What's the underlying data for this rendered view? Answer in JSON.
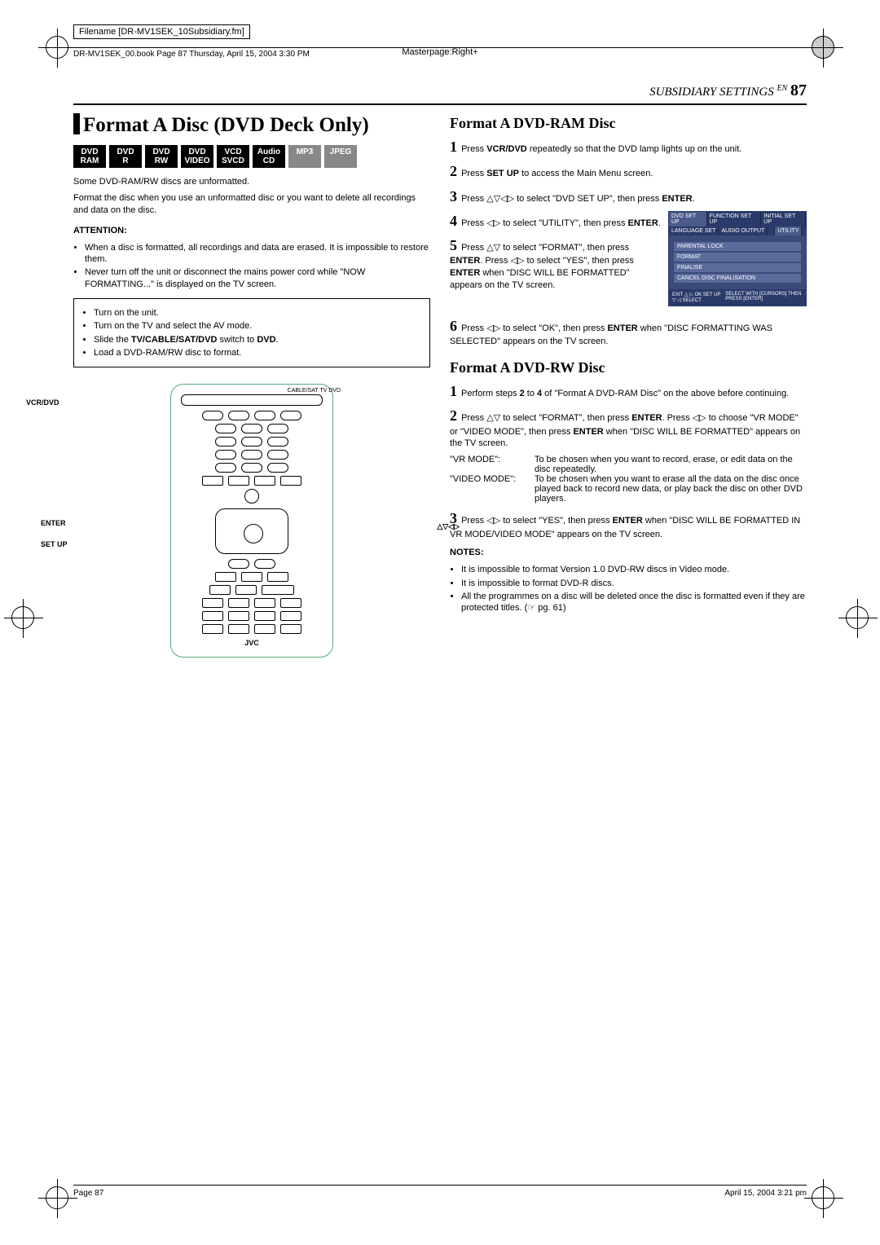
{
  "meta": {
    "filename_label": "Filename [DR-MV1SEK_10Subsidiary.fm]",
    "book_line": "DR-MV1SEK_00.book  Page 87  Thursday, April 15, 2004  3:30 PM",
    "masterpage": "Masterpage:Right+",
    "section": "SUBSIDIARY SETTINGS",
    "lang": "EN",
    "page_num": "87",
    "footer_left": "Page 87",
    "footer_right": "April 15, 2004 3:21 pm"
  },
  "left": {
    "title": "Format A Disc (DVD Deck Only)",
    "badges": [
      {
        "l1": "DVD",
        "l2": "RAM",
        "grey": false
      },
      {
        "l1": "DVD",
        "l2": "R",
        "grey": false
      },
      {
        "l1": "DVD",
        "l2": "RW",
        "grey": false
      },
      {
        "l1": "DVD",
        "l2": "VIDEO",
        "grey": false
      },
      {
        "l1": "VCD",
        "l2": "SVCD",
        "grey": false
      },
      {
        "l1": "Audio",
        "l2": "CD",
        "grey": false
      },
      {
        "l1": "MP3",
        "l2": "",
        "grey": true
      },
      {
        "l1": "JPEG",
        "l2": "",
        "grey": true
      }
    ],
    "intro1": "Some DVD-RAM/RW discs are unformatted.",
    "intro2": "Format the disc when you use an unformatted disc or you want to delete all recordings and data on the disc.",
    "attention_h": "ATTENTION:",
    "attention": [
      "When a disc is formatted, all recordings and data are erased. It is impossible to restore them.",
      "Never turn off the unit or disconnect the mains power cord while \"NOW FORMATTING...\" is displayed on the TV screen."
    ],
    "boxed": [
      "Turn on the unit.",
      "Turn on the TV and select the AV mode.",
      "Slide the TV/CABLE/SAT/DVD switch to DVD.",
      "Load a DVD-RAM/RW disc to format."
    ],
    "box_bold": "TV/CABLE/SAT/DVD",
    "box_bold2": "DVD",
    "remote_labels": {
      "vcr": "VCR/DVD",
      "enter": "ENTER",
      "setup": "SET UP",
      "arrows": "△▽◁▷",
      "cable": "CABLE/SAT   TV       DVD",
      "brand": "JVC"
    }
  },
  "right": {
    "ram_title": "Format A DVD-RAM Disc",
    "ram_steps": {
      "s1a": "Press ",
      "s1b": "VCR/DVD",
      "s1c": " repeatedly so that the DVD lamp lights up on the unit.",
      "s2a": "Press ",
      "s2b": "SET UP",
      "s2c": " to access the Main Menu screen.",
      "s3a": "Press △▽◁▷ to select \"DVD SET UP\", then press ",
      "s3b": "ENTER",
      "s3c": ".",
      "s4a": "Press ◁▷ to select \"UTILITY\", then press ",
      "s4b": "ENTER",
      "s4c": ".",
      "s5a": "Press △▽ to select \"FORMAT\", then press ",
      "s5b": "ENTER",
      "s5c": ". Press ◁▷ to select \"YES\", then press ",
      "s5d": "ENTER",
      "s5e": " when \"DISC WILL BE FORMATTED\" appears on the TV screen.",
      "s6a": "Press ◁▷ to select \"OK\", then press ",
      "s6b": "ENTER",
      "s6c": " when \"DISC FORMATTING WAS SELECTED\" appears on the TV screen."
    },
    "menu": {
      "tabs": [
        "DVD SET UP",
        "FUNCTION SET UP",
        "INITIAL SET UP"
      ],
      "subtabs": [
        "LANGUAGE SET",
        "AUDIO OUTPUT",
        "",
        "UTILITY"
      ],
      "items": [
        "PARENTAL LOCK",
        "FORMAT",
        "FINALISE",
        "CANCEL DISC FINALISATION"
      ],
      "foot_l": "EXIT △ ▷ OK\nSET UP ▽ ◁ SELECT",
      "foot_r": "SELECT WITH [CURSORS]\nTHEN PRESS [ENTER]"
    },
    "rw_title": "Format A DVD-RW Disc",
    "rw_steps": {
      "s1": "Perform steps 2 to 4 of \"Format A DVD-RAM Disc\" on the above before continuing.",
      "s1_bold1": "2",
      "s1_bold2": "4",
      "s2a": "Press △▽ to select \"FORMAT\", then press ",
      "s2b": "ENTER",
      "s2c": ". Press ◁▷ to choose \"VR MODE\" or \"VIDEO MODE\", then press ",
      "s2d": "ENTER",
      "s2e": " when \"DISC WILL BE FORMATTED\" appears on the TV screen.",
      "vr_l": "\"VR MODE\":",
      "vr_r": "To be chosen when you want to record, erase, or edit data on the disc repeatedly.",
      "vid_l": "\"VIDEO MODE\":",
      "vid_r": "To be chosen when you want to erase all the data on the disc once played back to record new data, or play back the disc on other DVD players.",
      "s3a": "Press ◁▷ to select \"YES\", then press ",
      "s3b": "ENTER",
      "s3c": " when \"DISC WILL BE FORMATTED IN VR MODE/VIDEO MODE\" appears on the TV screen."
    },
    "notes_h": "NOTES:",
    "notes": [
      "It is impossible to format Version 1.0 DVD-RW discs in Video mode.",
      "It is impossible to format DVD-R discs.",
      "All the programmes on a disc will be deleted once the disc is formatted even if they are protected titles. (☞ pg. 61)"
    ]
  }
}
